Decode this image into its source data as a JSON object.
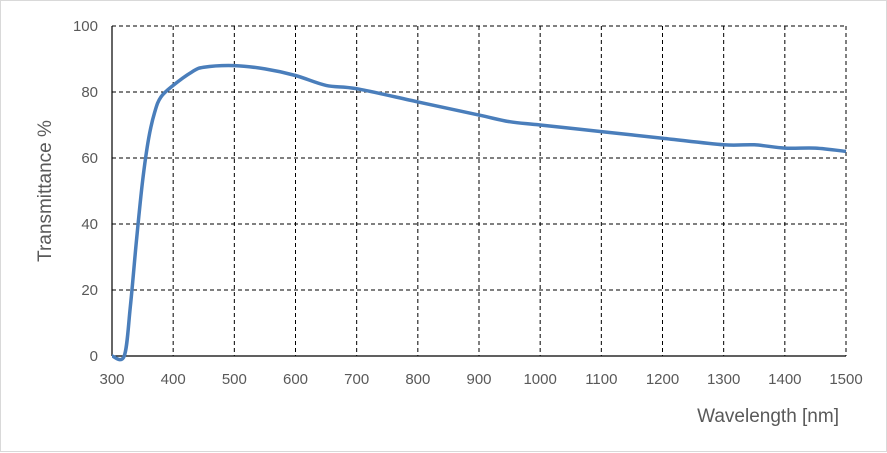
{
  "chart_data": {
    "type": "line",
    "title": "",
    "xlabel": "Wavelength [nm]",
    "ylabel": "Transmittance %",
    "xlim": [
      300,
      1500
    ],
    "ylim": [
      0,
      100
    ],
    "xticks": [
      300,
      400,
      500,
      600,
      700,
      800,
      900,
      1000,
      1100,
      1200,
      1300,
      1400,
      1500
    ],
    "yticks": [
      0,
      20,
      40,
      60,
      80,
      100
    ],
    "grid": "dashed",
    "line_color": "#4a7ebb",
    "series": [
      {
        "x": [
          300,
          320,
          330,
          340,
          350,
          360,
          370,
          380,
          400,
          430,
          450,
          500,
          550,
          600,
          650,
          700,
          800,
          900,
          950,
          1000,
          1100,
          1200,
          1300,
          1350,
          1400,
          1450,
          1500
        ],
        "y": [
          0,
          0,
          15,
          35,
          53,
          66,
          74,
          78.5,
          82,
          86,
          87.5,
          88,
          87,
          85,
          82,
          81,
          77,
          73,
          71,
          70,
          68,
          66,
          64,
          64,
          63,
          63,
          62
        ]
      }
    ]
  }
}
